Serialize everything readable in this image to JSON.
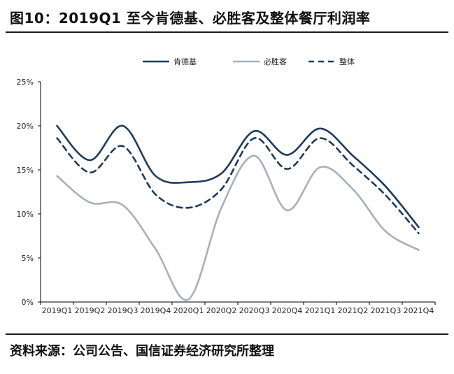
{
  "title": "图10：2019Q1 至今肯德基、必胜客及整体餐厅利润率",
  "source": "资料来源：公司公告、国信证券经济研究所整理",
  "colors": {
    "kfc": "#1f3a5c",
    "pizzahut": "#a4b0bf",
    "overall": "#1f3a5c",
    "axis": "#000000"
  },
  "chart_data": {
    "type": "line",
    "categories": [
      "2019Q1",
      "2019Q2",
      "2019Q3",
      "2019Q4",
      "2020Q1",
      "2020Q2",
      "2020Q3",
      "2020Q4",
      "2021Q1",
      "2021Q2",
      "2021Q3",
      "2021Q4"
    ],
    "yticks": [
      "0%",
      "5%",
      "10%",
      "15%",
      "20%",
      "25%"
    ],
    "ylim": [
      0,
      25
    ],
    "legend_position": "top",
    "series": [
      {
        "name": "肯德基",
        "style": "solid",
        "values": [
          20.0,
          16.1,
          20.0,
          14.3,
          13.6,
          14.6,
          19.4,
          16.7,
          19.7,
          16.6,
          13.1,
          8.5
        ]
      },
      {
        "name": "必胜客",
        "style": "solid",
        "values": [
          14.3,
          11.3,
          11.0,
          6.0,
          0.3,
          10.7,
          16.6,
          10.4,
          15.3,
          12.8,
          8.0,
          5.9
        ]
      },
      {
        "name": "整体",
        "style": "dashed",
        "values": [
          18.6,
          14.7,
          17.7,
          12.2,
          10.7,
          12.8,
          18.6,
          15.1,
          18.6,
          15.5,
          12.1,
          7.8
        ]
      }
    ]
  }
}
